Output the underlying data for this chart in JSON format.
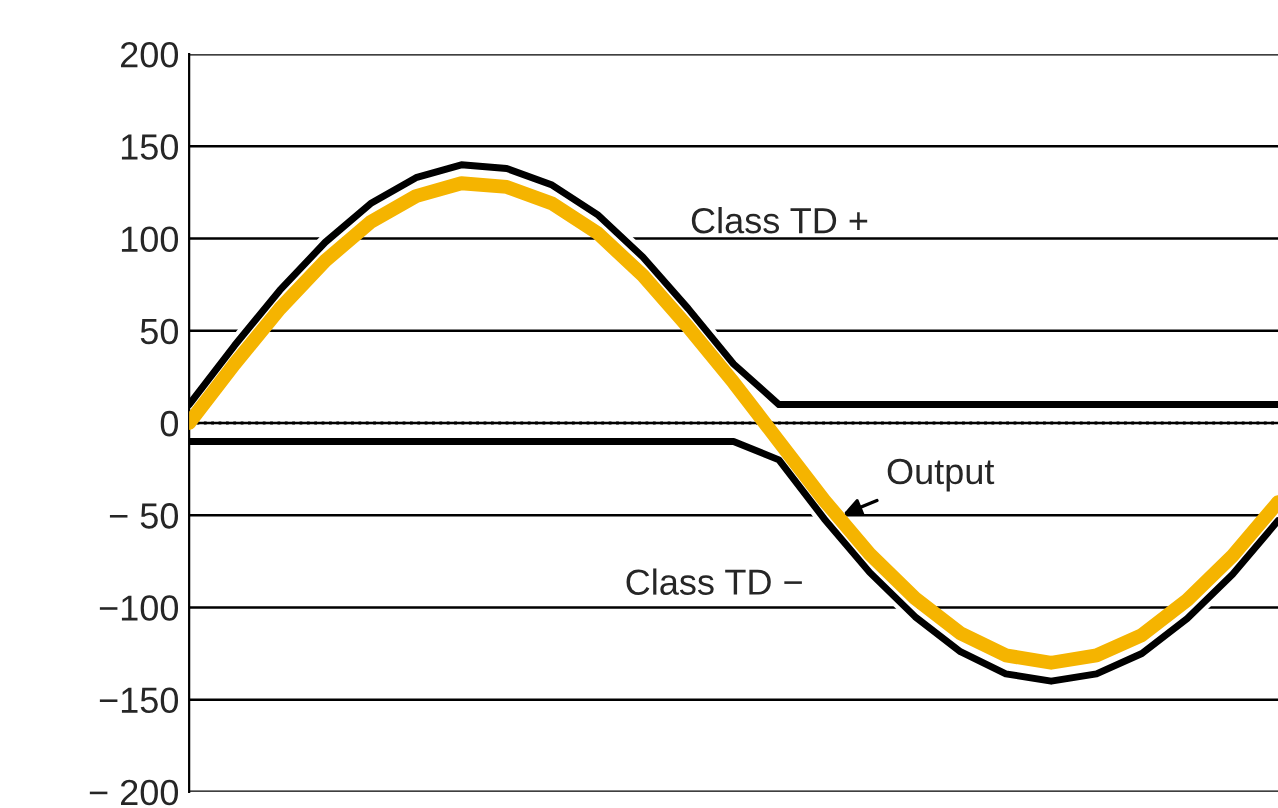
{
  "chart_data": {
    "type": "line",
    "categories": [
      null,
      null,
      null,
      null,
      null,
      null,
      null,
      null,
      null,
      null,
      null,
      null,
      null,
      null,
      null,
      null,
      null,
      null,
      null,
      null,
      null,
      null,
      null,
      null,
      null
    ],
    "series": [
      {
        "name": "Class TD +",
        "color": "#000000",
        "values": [
          10,
          42,
          72,
          98,
          119,
          133,
          140,
          138,
          129,
          113,
          90,
          62,
          32,
          10,
          10,
          10,
          10,
          10,
          10,
          10,
          10,
          10,
          10,
          10,
          10
        ]
      },
      {
        "name": "Class TD −",
        "color": "#000000",
        "values": [
          -10,
          -10,
          -10,
          -10,
          -10,
          -10,
          -10,
          -10,
          -10,
          -10,
          -10,
          -10,
          -10,
          -20,
          -52,
          -81,
          -105,
          -124,
          -136,
          -140,
          -136,
          -125,
          -106,
          -82,
          -53
        ]
      },
      {
        "name": "Output",
        "color": "#f5b400",
        "values": [
          0,
          32,
          62,
          88,
          109,
          123,
          130,
          128,
          119,
          103,
          80,
          52,
          22,
          -10,
          -42,
          -71,
          -95,
          -114,
          -126,
          -130,
          -126,
          -115,
          -96,
          -72,
          -43
        ]
      }
    ],
    "ylim": [
      -200,
      200
    ],
    "yticks": [
      200,
      150,
      100,
      50,
      0,
      {
        "value": -50,
        "label": "− 50"
      },
      {
        "value": -100,
        "label": "−100"
      },
      {
        "value": -150,
        "label": "−150"
      },
      {
        "value": -200,
        "label": "− 200"
      }
    ],
    "grid": "y",
    "ref_lines": [
      {
        "axis": "y",
        "value": 0,
        "line_style": "dotted",
        "color": "#000000"
      }
    ],
    "legend": false,
    "tick_labels": "y"
  }
}
